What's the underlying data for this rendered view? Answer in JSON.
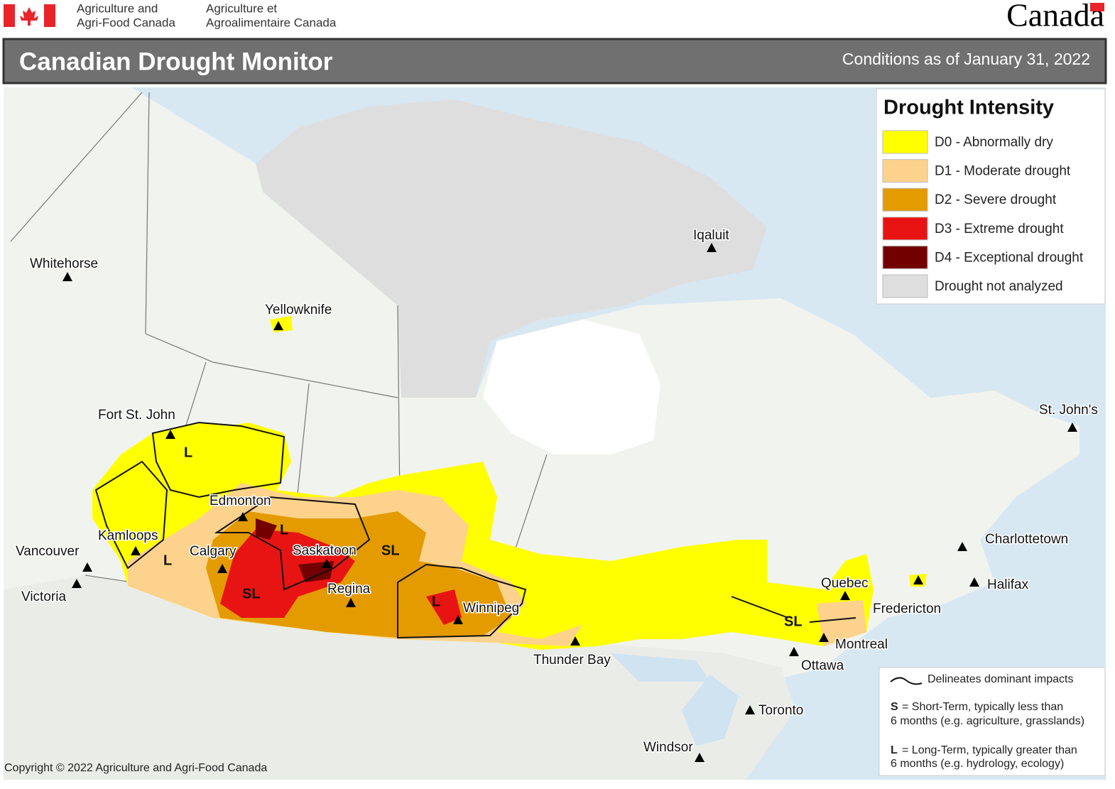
{
  "header": {
    "agency_en": [
      "Agriculture and",
      "Agri-Food Canada"
    ],
    "agency_fr": [
      "Agriculture et",
      "Agroalimentaire Canada"
    ],
    "wordmark": "Canada"
  },
  "banner": {
    "title": "Canadian Drought Monitor",
    "date": "Conditions as of January 31, 2022"
  },
  "legend": {
    "title": "Drought Intensity",
    "items": [
      {
        "label": "D0 - Abnormally dry",
        "color": "#ffff00"
      },
      {
        "label": "D1 - Moderate drought",
        "color": "#fcd28c"
      },
      {
        "label": "D2 - Severe drought",
        "color": "#e39b00"
      },
      {
        "label": "D3 - Extreme drought",
        "color": "#e81414"
      },
      {
        "label": "D4 - Exceptional drought",
        "color": "#730000"
      },
      {
        "label": "Drought not analyzed",
        "color": "#dedede"
      }
    ]
  },
  "cities": [
    "Whitehorse",
    "Yellowknife",
    "Iqaluit",
    "Fort St. John",
    "Edmonton",
    "Kamloops",
    "Calgary",
    "Saskatoon",
    "Vancouver",
    "Victoria",
    "Regina",
    "Winnipeg",
    "Thunder Bay",
    "Quebec",
    "Fredericton",
    "Charlottetown",
    "Halifax",
    "St. John's",
    "Montreal",
    "Ottawa",
    "Toronto",
    "Windsor"
  ],
  "impact_labels": [
    "L",
    "L",
    "L",
    "SL",
    "SL",
    "L",
    "SL"
  ],
  "notes": {
    "delineates": "Delineates dominant impacts",
    "s_key": "S",
    "s_text": [
      "= Short-Term, typically less than",
      "6 months (e.g. agriculture, grasslands)"
    ],
    "l_key": "L",
    "l_text": [
      "= Long-Term, typically greater  than",
      "6 months (e.g. hydrology, ecology)"
    ]
  },
  "copyright": "Copyright © 2022 Agriculture and Agri-Food Canada"
}
